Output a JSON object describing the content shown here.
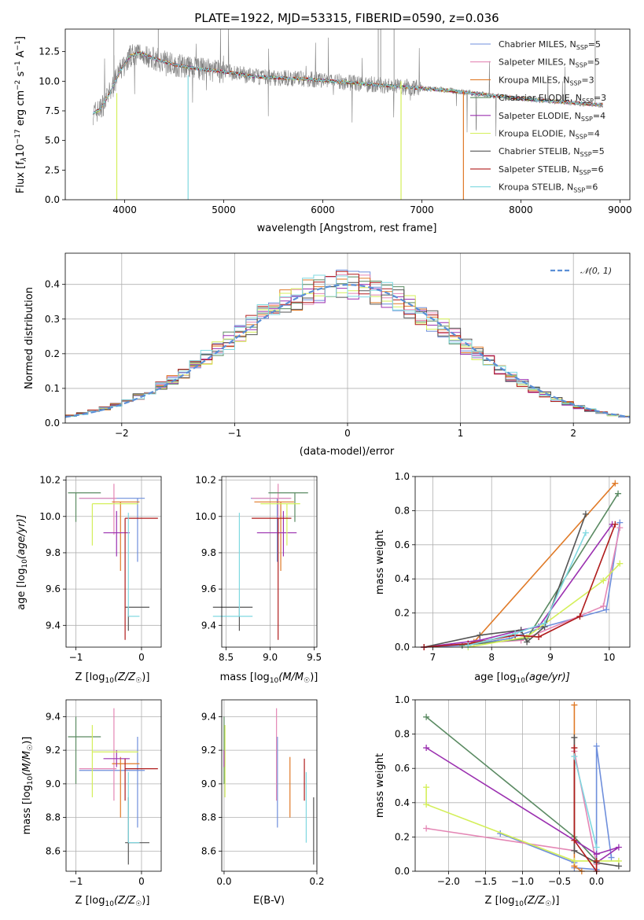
{
  "colors": {
    "chabrier_miles": "#6f8fdc",
    "salpeter_miles": "#e487b5",
    "kroupa_miles": "#e07a27",
    "chabrier_elodie": "#5a8a62",
    "salpeter_elodie": "#9b30b0",
    "kroupa_elodie": "#d4ef5a",
    "chabrier_stelib": "#555555",
    "salpeter_stelib": "#b01c1c",
    "kroupa_stelib": "#7fd8e0",
    "normal": "#5b8fd6",
    "data": "#808080"
  },
  "chart_data": [
    {
      "id": "spectrum",
      "type": "line",
      "title": "PLATE=1922, MJD=53315, FIBERID=0590, z=0.036",
      "xlabel": "wavelength [Angstrom, rest frame]",
      "ylabel_main": "Flux [f",
      "ylabel_sub": "λ",
      "ylabel_rest": "10",
      "ylabel_exp": "−17",
      "ylabel_tail": " erg cm",
      "ylabel_exp2": "−2",
      "ylabel_tail2": " s",
      "ylabel_exp3": "−1",
      "ylabel_tail3": " A",
      "ylabel_exp4": "−1",
      "ylabel_end": "]",
      "xlim": [
        3400,
        9100
      ],
      "ylim": [
        0,
        14.4
      ],
      "xticks": [
        4000,
        5000,
        6000,
        7000,
        8000,
        9000
      ],
      "xtick_labels": [
        "4000",
        "5000",
        "6000",
        "7000",
        "8000",
        "9000"
      ],
      "yticks": [
        0,
        2.5,
        5,
        7.5,
        10,
        12.5
      ],
      "ytick_labels": [
        "0.0",
        "2.5",
        "5.0",
        "7.5",
        "10.0",
        "12.5"
      ],
      "continuum": {
        "x": [
          3680,
          3750,
          3850,
          3950,
          4050,
          4150,
          4300,
          4500,
          4700,
          4900,
          5100,
          5300,
          5500,
          5800,
          6100,
          6400,
          6700,
          7000,
          7300,
          7600,
          7900,
          8200,
          8500,
          8800
        ],
        "y": [
          7.3,
          7.6,
          9.0,
          10.8,
          12.1,
          12.4,
          11.9,
          11.4,
          11.1,
          10.9,
          10.7,
          10.4,
          10.3,
          10.2,
          10.0,
          9.8,
          9.6,
          9.4,
          9.2,
          8.9,
          8.6,
          8.4,
          8.2,
          8.0
        ]
      },
      "legend": [
        {
          "main": "Chabrier MILES, N",
          "sub": "SSP",
          "end": "=5"
        },
        {
          "main": "Salpeter MILES, N",
          "sub": "SSP",
          "end": "=5"
        },
        {
          "main": "Kroupa MILES, N",
          "sub": "SSP",
          "end": "=3"
        },
        {
          "main": "Chabrier ELODIE, N",
          "sub": "SSP",
          "end": "=3"
        },
        {
          "main": "Salpeter ELODIE, N",
          "sub": "SSP",
          "end": "=4"
        },
        {
          "main": "Kroupa ELODIE, N",
          "sub": "SSP",
          "end": "=4"
        },
        {
          "main": "Chabrier STELIB, N",
          "sub": "SSP",
          "end": "=5"
        },
        {
          "main": "Salpeter STELIB, N",
          "sub": "SSP",
          "end": "=6"
        },
        {
          "main": "Kroupa STELIB, N",
          "sub": "SSP",
          "end": "=6"
        }
      ]
    },
    {
      "id": "residuals",
      "type": "histogram",
      "xlabel": "(data-model)/error",
      "ylabel": "Normed distribution",
      "xlim": [
        -2.5,
        2.5
      ],
      "ylim": [
        0,
        0.49
      ],
      "xticks": [
        -2,
        -1,
        0,
        1,
        2
      ],
      "xtick_labels": [
        "−2",
        "−1",
        "0",
        "1",
        "2"
      ],
      "yticks": [
        0,
        0.1,
        0.2,
        0.3,
        0.4
      ],
      "ytick_labels": [
        "0.0",
        "0.1",
        "0.2",
        "0.3",
        "0.4"
      ],
      "legend_label": "𝒩(0, 1)",
      "bin_width": 0.1
    },
    {
      "id": "age_vs_z",
      "type": "scatter",
      "xlabel_main": "Z [log",
      "xlabel_sub": "10",
      "xlabel_end": "(Z/Z",
      "xlabel_sun": "☉",
      "xlabel_close": ")]",
      "ylabel_main": "age  [log",
      "ylabel_sub": "10",
      "ylabel_end": "(age/yr)]",
      "xlim": [
        -1.15,
        0.3
      ],
      "ylim": [
        9.28,
        10.22
      ],
      "xticks": [
        -1,
        0
      ],
      "xtick_labels": [
        "−1",
        "0"
      ],
      "yticks": [
        9.4,
        9.6,
        9.8,
        10.0,
        10.2
      ],
      "ytick_labels": [
        "9.4",
        "9.6",
        "9.8",
        "10.0",
        "10.2"
      ]
    },
    {
      "id": "age_vs_mass",
      "type": "scatter",
      "xlabel_main": "mass [log",
      "xlabel_sub": "10",
      "xlabel_end": "(M/M",
      "xlabel_sun": "☉",
      "xlabel_close": ")]",
      "xlim": [
        8.45,
        9.53
      ],
      "ylim": [
        9.28,
        10.22
      ],
      "xticks": [
        8.5,
        9.0,
        9.5
      ],
      "xtick_labels": [
        "8.5",
        "9.0",
        "9.5"
      ],
      "yticks": [
        9.4,
        9.6,
        9.8,
        10.0,
        10.2
      ],
      "ytick_labels": [
        "9.4",
        "9.6",
        "9.8",
        "10.0",
        "10.2"
      ]
    },
    {
      "id": "weight_vs_age",
      "type": "line",
      "xlabel_main": "age  [log",
      "xlabel_sub": "10",
      "xlabel_end": "(age/yr)]",
      "ylabel": "mass weight",
      "xlim": [
        6.7,
        10.35
      ],
      "ylim": [
        0,
        1.0
      ],
      "xticks": [
        7,
        8,
        9,
        10
      ],
      "xtick_labels": [
        "7",
        "8",
        "9",
        "10"
      ],
      "yticks": [
        0,
        0.2,
        0.4,
        0.6,
        0.8,
        1.0
      ],
      "ytick_labels": [
        "0.0",
        "0.2",
        "0.4",
        "0.6",
        "0.8",
        "1.0"
      ],
      "series": [
        {
          "key": "chabrier_miles",
          "x": [
            6.85,
            7.5,
            8.3,
            8.9,
            9.95,
            10.18
          ],
          "y": [
            0.0,
            0.01,
            0.05,
            0.12,
            0.22,
            0.73
          ]
        },
        {
          "key": "salpeter_miles",
          "x": [
            6.85,
            7.6,
            8.5,
            9.9,
            10.18
          ],
          "y": [
            0.0,
            0.02,
            0.04,
            0.24,
            0.7
          ]
        },
        {
          "key": "kroupa_miles",
          "x": [
            7.7,
            10.1
          ],
          "y": [
            0.03,
            0.96
          ]
        },
        {
          "key": "chabrier_elodie",
          "x": [
            7.5,
            8.6,
            10.15
          ],
          "y": [
            0.01,
            0.05,
            0.9
          ]
        },
        {
          "key": "salpeter_elodie",
          "x": [
            6.85,
            7.8,
            8.5,
            8.8,
            10.05
          ],
          "y": [
            0.0,
            0.04,
            0.1,
            0.12,
            0.72
          ]
        },
        {
          "key": "kroupa_elodie",
          "x": [
            7.6,
            8.6,
            9.9,
            10.18
          ],
          "y": [
            0.0,
            0.06,
            0.39,
            0.49
          ]
        },
        {
          "key": "chabrier_stelib",
          "x": [
            6.85,
            7.8,
            8.5,
            8.6,
            8.9,
            9.6
          ],
          "y": [
            0.0,
            0.07,
            0.1,
            0.03,
            0.12,
            0.78
          ]
        },
        {
          "key": "salpeter_stelib",
          "x": [
            6.85,
            7.6,
            8.4,
            8.8,
            9.5,
            10.1
          ],
          "y": [
            0.0,
            0.02,
            0.07,
            0.06,
            0.18,
            0.72
          ]
        },
        {
          "key": "kroupa_stelib",
          "x": [
            7.6,
            8.4,
            8.9,
            9.6
          ],
          "y": [
            0.01,
            0.08,
            0.14,
            0.67
          ]
        }
      ]
    },
    {
      "id": "mass_vs_z",
      "type": "scatter",
      "xlabel_main": "Z [log",
      "xlabel_sub": "10",
      "xlabel_end": "(Z/Z",
      "xlabel_sun": "☉",
      "xlabel_close": ")]",
      "ylabel_main": "mass [log",
      "ylabel_sub": "10",
      "ylabel_end": "(M/M",
      "ylabel_sun": "☉",
      "ylabel_close": ")]",
      "xlim": [
        -1.15,
        0.3
      ],
      "ylim": [
        8.48,
        9.5
      ],
      "xticks": [
        -1,
        0
      ],
      "xtick_labels": [
        "−1",
        "0"
      ],
      "yticks": [
        8.6,
        8.8,
        9.0,
        9.2,
        9.4
      ],
      "ytick_labels": [
        "8.6",
        "8.8",
        "9.0",
        "9.2",
        "9.4"
      ]
    },
    {
      "id": "mass_vs_ebv",
      "type": "scatter",
      "xlabel": "E(B-V)",
      "xlim": [
        -0.005,
        0.2
      ],
      "ylim": [
        8.48,
        9.5
      ],
      "xticks": [
        0.0,
        0.2
      ],
      "xtick_labels": [
        "0.0",
        "0.2"
      ],
      "yticks": [
        8.6,
        8.8,
        9.0,
        9.2,
        9.4
      ],
      "ytick_labels": [
        "8.6",
        "8.8",
        "9.0",
        "9.2",
        "9.4"
      ]
    },
    {
      "id": "weight_vs_z",
      "type": "line",
      "xlabel_main": "Z [log",
      "xlabel_sub": "10",
      "xlabel_end": "(Z/Z",
      "xlabel_sun": "☉",
      "xlabel_close": ")]",
      "ylabel": "mass weight",
      "xlim": [
        -2.45,
        0.45
      ],
      "ylim": [
        0,
        1.0
      ],
      "xticks": [
        -2.0,
        -1.5,
        -1.0,
        -0.5,
        0.0
      ],
      "xtick_labels": [
        "−2.0",
        "−1.5",
        "−1.0",
        "−0.5",
        "0.0"
      ],
      "yticks": [
        0,
        0.2,
        0.4,
        0.6,
        0.8,
        1.0
      ],
      "ytick_labels": [
        "0.0",
        "0.2",
        "0.4",
        "0.6",
        "0.8",
        "1.0"
      ],
      "series": [
        {
          "key": "chabrier_miles",
          "x": [
            -1.3,
            -0.3,
            -0.3,
            0.0,
            0.0,
            0.2
          ],
          "y": [
            0.22,
            0.05,
            0.02,
            0.01,
            0.73,
            0.08
          ]
        },
        {
          "key": "salpeter_miles",
          "x": [
            -2.3,
            -0.3,
            -0.3,
            0.0
          ],
          "y": [
            0.25,
            0.12,
            0.7,
            0.04
          ]
        },
        {
          "key": "kroupa_miles",
          "x": [
            -0.3,
            -0.3,
            -0.2
          ],
          "y": [
            0.97,
            0.03,
            0.0
          ]
        },
        {
          "key": "chabrier_elodie",
          "x": [
            -2.3,
            -0.3,
            0.0
          ],
          "y": [
            0.9,
            0.2,
            0.06
          ]
        },
        {
          "key": "salpeter_elodie",
          "x": [
            -2.3,
            0.0,
            0.3,
            0.0
          ],
          "y": [
            0.72,
            0.1,
            0.14,
            0.05
          ]
        },
        {
          "key": "kroupa_elodie",
          "x": [
            -2.3,
            -2.3,
            -0.3,
            0.3
          ],
          "y": [
            0.49,
            0.39,
            0.06,
            0.06
          ]
        },
        {
          "key": "chabrier_stelib",
          "x": [
            -0.3,
            -0.3,
            0.0,
            0.3
          ],
          "y": [
            0.78,
            0.12,
            0.05,
            0.03
          ]
        },
        {
          "key": "salpeter_stelib",
          "x": [
            -0.3,
            -0.3,
            0.0,
            0.0
          ],
          "y": [
            0.72,
            0.18,
            0.0,
            0.06
          ]
        },
        {
          "key": "kroupa_stelib",
          "x": [
            -0.3,
            0.0
          ],
          "y": [
            0.67,
            0.14
          ]
        }
      ]
    }
  ],
  "errbars": [
    {
      "key": "chabrier_miles",
      "z": -0.06,
      "zerr": 0.04,
      "age": 10.1,
      "ageerr_lo": 0.35,
      "ageerr_hi": 0.0,
      "mass": 9.08,
      "masserr": 0.1,
      "ebv": 0.115,
      "mlo": 8.74,
      "mhi": 9.28,
      "zx1": -0.95,
      "zx2": 0.05
    },
    {
      "key": "salpeter_miles",
      "z": -0.42,
      "zerr": 0.02,
      "age": 10.1,
      "ageerr_lo": 0.2,
      "ageerr_hi": 0.08,
      "mass": 9.09,
      "masserr": 0.1,
      "ebv": 0.113,
      "mlo": 8.9,
      "mhi": 9.45,
      "zx1": -0.95,
      "zx2": -0.38
    },
    {
      "key": "kroupa_miles",
      "z": -0.32,
      "zerr": 0.02,
      "age": 10.08,
      "ageerr_lo": 0.38,
      "ageerr_hi": 0.0,
      "mass": 9.12,
      "masserr": 0.06,
      "ebv": 0.142,
      "mlo": 8.8,
      "mhi": 9.16,
      "zx1": -0.45,
      "zx2": -0.03
    },
    {
      "key": "chabrier_elodie",
      "z": -1.0,
      "zerr": 0.05,
      "age": 10.13,
      "ageerr_lo": 0.16,
      "ageerr_hi": 0.0,
      "mass": 9.28,
      "masserr": 0.1,
      "ebv": 0.0,
      "mlo": 9.0,
      "mhi": 9.4,
      "zx1": -1.12,
      "zx2": -0.62
    },
    {
      "key": "salpeter_elodie",
      "z": -0.38,
      "zerr": 0.02,
      "age": 9.91,
      "ageerr_lo": 0.13,
      "ageerr_hi": 0.12,
      "mass": 9.15,
      "masserr": 0.1,
      "ebv": 0.0,
      "mlo": 9.1,
      "mhi": 9.2,
      "zx1": -0.58,
      "zx2": -0.18
    },
    {
      "key": "kroupa_elodie",
      "z": -0.75,
      "zerr": 0.02,
      "age": 10.07,
      "ageerr_lo": 0.23,
      "ageerr_hi": 0.0,
      "mass": 9.19,
      "masserr": 0.1,
      "ebv": 0.002,
      "mlo": 8.92,
      "mhi": 9.35,
      "zx1": -0.75,
      "zx2": -0.05
    },
    {
      "key": "chabrier_stelib",
      "z": -0.2,
      "zerr": 0.02,
      "age": 9.5,
      "ageerr_lo": 0.13,
      "ageerr_hi": 0.0,
      "mass": 8.65,
      "masserr": 0.1,
      "ebv": 0.193,
      "mlo": 8.52,
      "mhi": 8.92,
      "zx1": -0.25,
      "zx2": 0.12
    },
    {
      "key": "salpeter_stelib",
      "z": -0.25,
      "zerr": 0.02,
      "age": 9.99,
      "ageerr_lo": 0.67,
      "ageerr_hi": 0.0,
      "mass": 9.09,
      "masserr": 0.1,
      "ebv": 0.173,
      "mlo": 8.9,
      "mhi": 9.15,
      "zx1": -0.25,
      "zx2": 0.25
    },
    {
      "key": "kroupa_stelib",
      "z": -0.2,
      "zerr": 0.02,
      "age": 9.45,
      "ageerr_lo": 0.0,
      "ageerr_hi": 0.57,
      "mass": 8.65,
      "masserr": 0.1,
      "ebv": 0.177,
      "mlo": 8.65,
      "mhi": 9.07,
      "zx1": -0.2,
      "zx2": -0.03
    }
  ]
}
